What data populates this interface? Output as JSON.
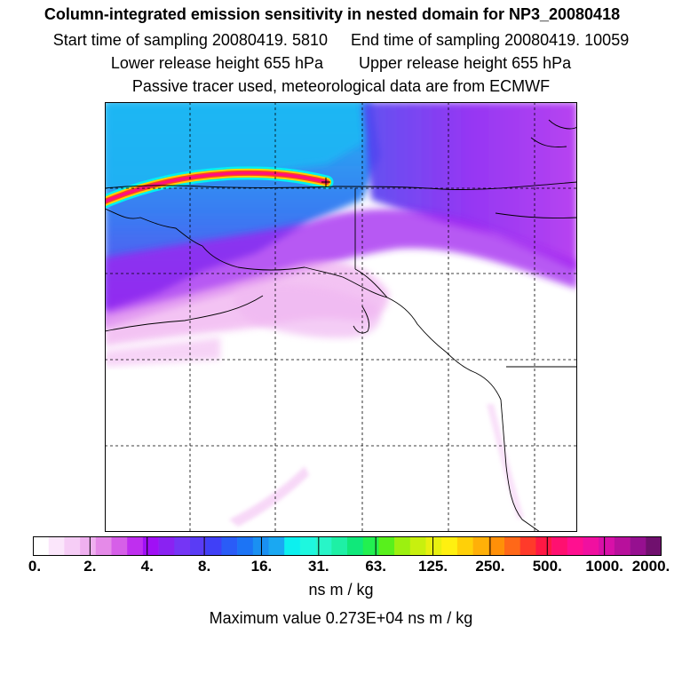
{
  "header": {
    "title": "Column-integrated emission sensitivity in nested domain for NP3_20080418",
    "start_time": "Start time of sampling 20080419.  5810",
    "end_time": "End time of sampling 20080419. 10059",
    "lower_release": "Lower release height  655 hPa",
    "upper_release": "Upper release height  655 hPa",
    "note": "Passive tracer used, meteorological data are from ECMWF"
  },
  "colorbar": {
    "labels": [
      "0.",
      "2.",
      "4.",
      "8.",
      "16.",
      "31.",
      "63.",
      "125.",
      "250.",
      "500.",
      "1000.",
      "2000."
    ],
    "colors": [
      "#ffffff",
      "#fbe6fb",
      "#f6cdf6",
      "#f0b0f0",
      "#e58ae8",
      "#d65fe8",
      "#bf2fef",
      "#a010f5",
      "#8a22f2",
      "#7535f5",
      "#5a3cf5",
      "#4040f7",
      "#2a5cf7",
      "#1c74f5",
      "#1a90f2",
      "#1aa8f2",
      "#0cf0ef",
      "#1ef7df",
      "#28f5c8",
      "#1ef0a5",
      "#10e87a",
      "#22f050",
      "#58f01c",
      "#9cf010",
      "#c8f00e",
      "#e8f010",
      "#fff010",
      "#ffd008",
      "#ffb008",
      "#ff9008",
      "#ff6818",
      "#ff3a2a",
      "#ff1844",
      "#ff1070",
      "#ff1090",
      "#f010a0",
      "#d810a8",
      "#b8109c",
      "#961090",
      "#70106e"
    ]
  },
  "units": "ns m / kg",
  "max_value": "Maximum value  0.273E+04 ns m / kg",
  "map": {
    "plume_colors": [
      "#ff1080",
      "#ff4020",
      "#ffd000",
      "#00f0f0"
    ],
    "ocean_tone": "#19a8f0",
    "land_tone": "#ffffff"
  }
}
